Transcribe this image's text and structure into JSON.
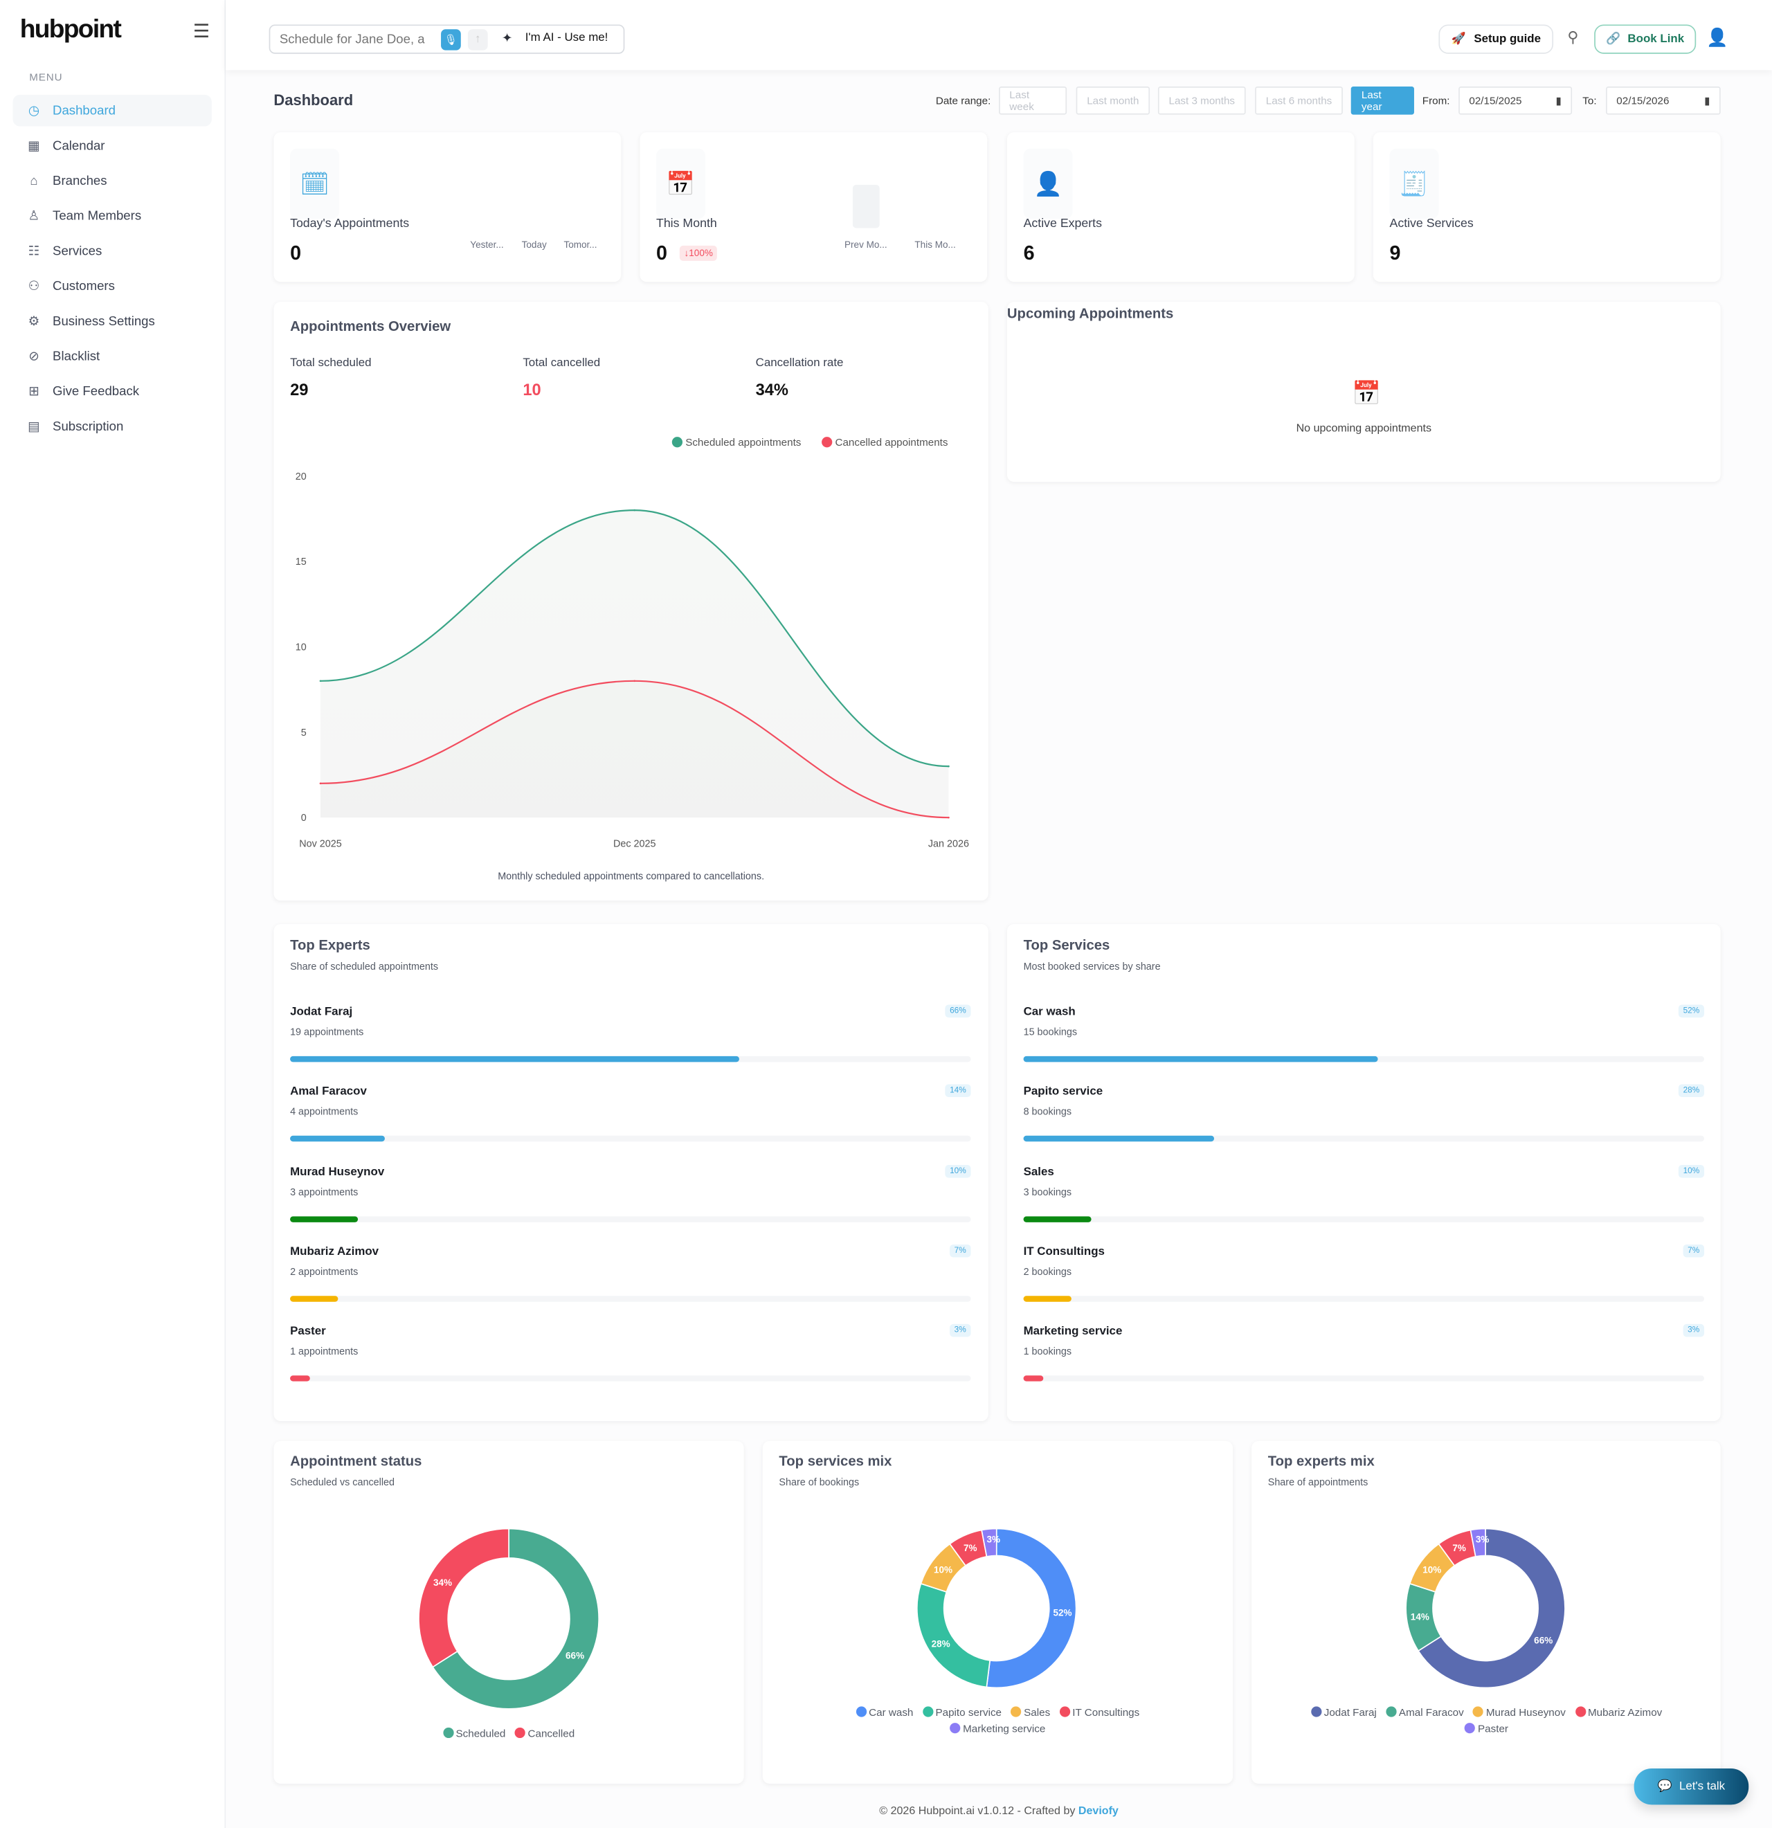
{
  "brand": {
    "logo": "hubpoint"
  },
  "sidebar": {
    "menu_label": "MENU",
    "items": [
      {
        "label": "Dashboard",
        "icon": "gauge-icon",
        "active": true
      },
      {
        "label": "Calendar",
        "icon": "calendar-icon"
      },
      {
        "label": "Branches",
        "icon": "building-icon"
      },
      {
        "label": "Team Members",
        "icon": "users-icon"
      },
      {
        "label": "Services",
        "icon": "list-icon"
      },
      {
        "label": "Customers",
        "icon": "customers-icon"
      },
      {
        "label": "Business Settings",
        "icon": "settings-icon"
      },
      {
        "label": "Blacklist",
        "icon": "blacklist-icon"
      },
      {
        "label": "Give Feedback",
        "icon": "feedback-icon"
      },
      {
        "label": "Subscription",
        "icon": "subscription-icon"
      }
    ]
  },
  "header": {
    "ai_placeholder": "Schedule for Jane Doe, a",
    "ai_label": "I'm AI - Use me!",
    "setup_guide": "Setup guide",
    "book_link": "Book Link"
  },
  "page": {
    "title": "Dashboard",
    "date_range_label": "Date range:",
    "ranges": [
      "Last week",
      "Last month",
      "Last 3 months",
      "Last 6 months",
      "Last year"
    ],
    "active_range": "Last year",
    "from_label": "From:",
    "from": "02/15/2025",
    "to_label": "To:",
    "to": "02/15/2026"
  },
  "stats": [
    {
      "label": "Today's Appointments",
      "value": "0",
      "mini": [
        "Yester...",
        "Today",
        "Tomor..."
      ]
    },
    {
      "label": "This Month",
      "value": "0",
      "delta": "↓100%",
      "mini": [
        "Prev Mo...",
        "This Mo..."
      ]
    },
    {
      "label": "Active Experts",
      "value": "6"
    },
    {
      "label": "Active Services",
      "value": "9"
    }
  ],
  "overview": {
    "title": "Appointments Overview",
    "kpis": [
      {
        "label": "Total scheduled",
        "value": "29"
      },
      {
        "label": "Total cancelled",
        "value": "10"
      },
      {
        "label": "Cancellation rate",
        "value": "34%"
      }
    ],
    "caption": "Monthly scheduled appointments compared to cancellations."
  },
  "chart_data": {
    "type": "line",
    "categories": [
      "Nov 2025",
      "Dec 2025",
      "Jan 2026"
    ],
    "series": [
      {
        "name": "Scheduled appointments",
        "values": [
          8,
          18,
          3
        ],
        "color": "#3aa587"
      },
      {
        "name": "Cancelled appointments",
        "values": [
          2,
          8,
          0
        ],
        "color": "#f24c5e"
      }
    ],
    "ylim": [
      0,
      20
    ],
    "yticks": [
      0,
      5,
      10,
      15,
      20
    ],
    "legend": "top-right",
    "grid": false
  },
  "upcoming": {
    "title": "Upcoming Appointments",
    "empty": "No upcoming appointments"
  },
  "top_experts": {
    "title": "Top Experts",
    "subtitle": "Share of scheduled appointments",
    "rows": [
      {
        "name": "Jodat Faraj",
        "count": "19 appointments",
        "pct": 66,
        "pct_label": "66%",
        "color": "#3ea6dc"
      },
      {
        "name": "Amal Faracov",
        "count": "4 appointments",
        "pct": 14,
        "pct_label": "14%",
        "color": "#3ea6dc"
      },
      {
        "name": "Murad Huseynov",
        "count": "3 appointments",
        "pct": 10,
        "pct_label": "10%",
        "color": "#0b8a12"
      },
      {
        "name": "Mubariz Azimov",
        "count": "2 appointments",
        "pct": 7,
        "pct_label": "7%",
        "color": "#f5b400"
      },
      {
        "name": "Paster",
        "count": "1 appointments",
        "pct": 3,
        "pct_label": "3%",
        "color": "#f24c5e"
      }
    ]
  },
  "top_services": {
    "title": "Top Services",
    "subtitle": "Most booked services by share",
    "rows": [
      {
        "name": "Car wash",
        "count": "15 bookings",
        "pct": 52,
        "pct_label": "52%",
        "color": "#3ea6dc"
      },
      {
        "name": "Papito service",
        "count": "8 bookings",
        "pct": 28,
        "pct_label": "28%",
        "color": "#3ea6dc"
      },
      {
        "name": "Sales",
        "count": "3 bookings",
        "pct": 10,
        "pct_label": "10%",
        "color": "#0b8a12"
      },
      {
        "name": "IT Consultings",
        "count": "2 bookings",
        "pct": 7,
        "pct_label": "7%",
        "color": "#f5b400"
      },
      {
        "name": "Marketing service",
        "count": "1 bookings",
        "pct": 3,
        "pct_label": "3%",
        "color": "#f24c5e"
      }
    ]
  },
  "donuts": [
    {
      "title": "Appointment status",
      "subtitle": "Scheduled vs cancelled",
      "slices": [
        {
          "name": "Scheduled",
          "value": 66,
          "label": "66%",
          "color": "#48ab91"
        },
        {
          "name": "Cancelled",
          "value": 34,
          "label": "34%",
          "color": "#f44b5f"
        }
      ]
    },
    {
      "title": "Top services mix",
      "subtitle": "Share of bookings",
      "slices": [
        {
          "name": "Car wash",
          "value": 52,
          "label": "52%",
          "color": "#4f8ef7"
        },
        {
          "name": "Papito service",
          "value": 28,
          "label": "28%",
          "color": "#34bfa0"
        },
        {
          "name": "Sales",
          "value": 10,
          "label": "10%",
          "color": "#f5b84a"
        },
        {
          "name": "IT Consultings",
          "value": 7,
          "label": "7%",
          "color": "#f24c5e"
        },
        {
          "name": "Marketing service",
          "value": 3,
          "label": "3%",
          "color": "#8b7cf5"
        }
      ]
    },
    {
      "title": "Top experts mix",
      "subtitle": "Share of appointments",
      "slices": [
        {
          "name": "Jodat Faraj",
          "value": 66,
          "label": "66%",
          "color": "#5a6bb0"
        },
        {
          "name": "Amal Faracov",
          "value": 14,
          "label": "14%",
          "color": "#48ab91"
        },
        {
          "name": "Murad Huseynov",
          "value": 10,
          "label": "10%",
          "color": "#f5b84a"
        },
        {
          "name": "Mubariz Azimov",
          "value": 7,
          "label": "7%",
          "color": "#f24c5e"
        },
        {
          "name": "Paster",
          "value": 3,
          "label": "3%",
          "color": "#8b7cf5"
        }
      ]
    }
  ],
  "footer": {
    "text": "© 2026 Hubpoint.ai v1.0.12 - Crafted by ",
    "link": "Deviofy"
  },
  "chat": {
    "label": "Let's talk"
  }
}
